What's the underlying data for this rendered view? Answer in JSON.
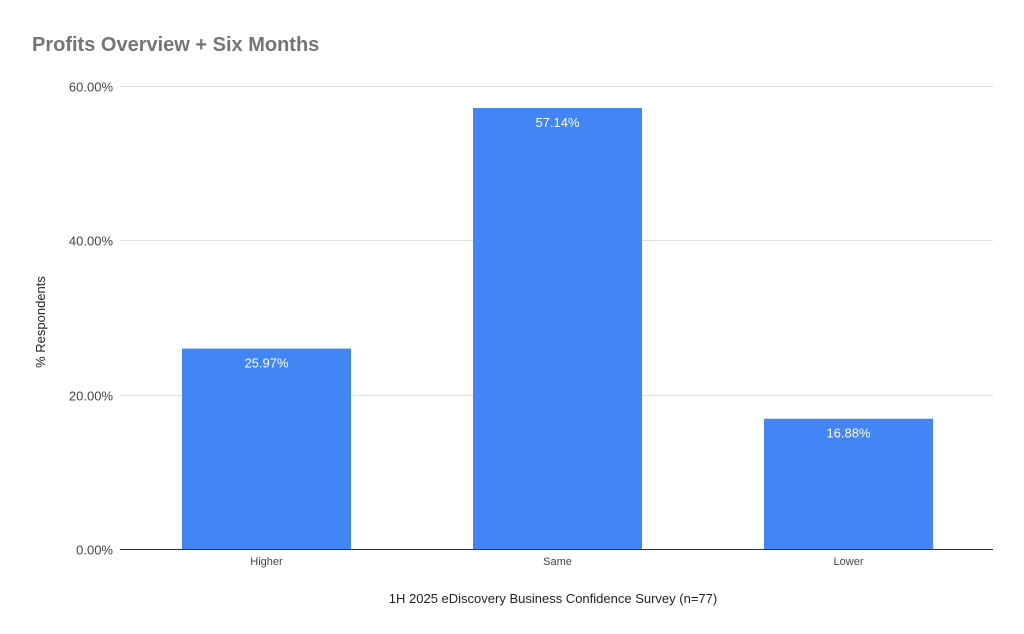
{
  "chart_data": {
    "type": "bar",
    "title": "Profits Overview + Six Months",
    "xlabel": "1H 2025 eDiscovery Business Confidence Survey (n=77)",
    "ylabel": "% Respondents",
    "categories": [
      "Higher",
      "Same",
      "Lower"
    ],
    "values": [
      25.97,
      57.14,
      16.88
    ],
    "data_labels": [
      "25.97%",
      "57.14%",
      "16.88%"
    ],
    "ylim": [
      0,
      60
    ],
    "yticks": [
      0,
      20,
      40,
      60
    ],
    "ytick_labels": [
      "0.00%",
      "20.00%",
      "40.00%",
      "60.00%"
    ],
    "grid": true,
    "legend": "none",
    "colors": {
      "bar": "#4285f4",
      "grid": "#dddddd",
      "baseline": "#333333",
      "title": "#757575"
    }
  }
}
